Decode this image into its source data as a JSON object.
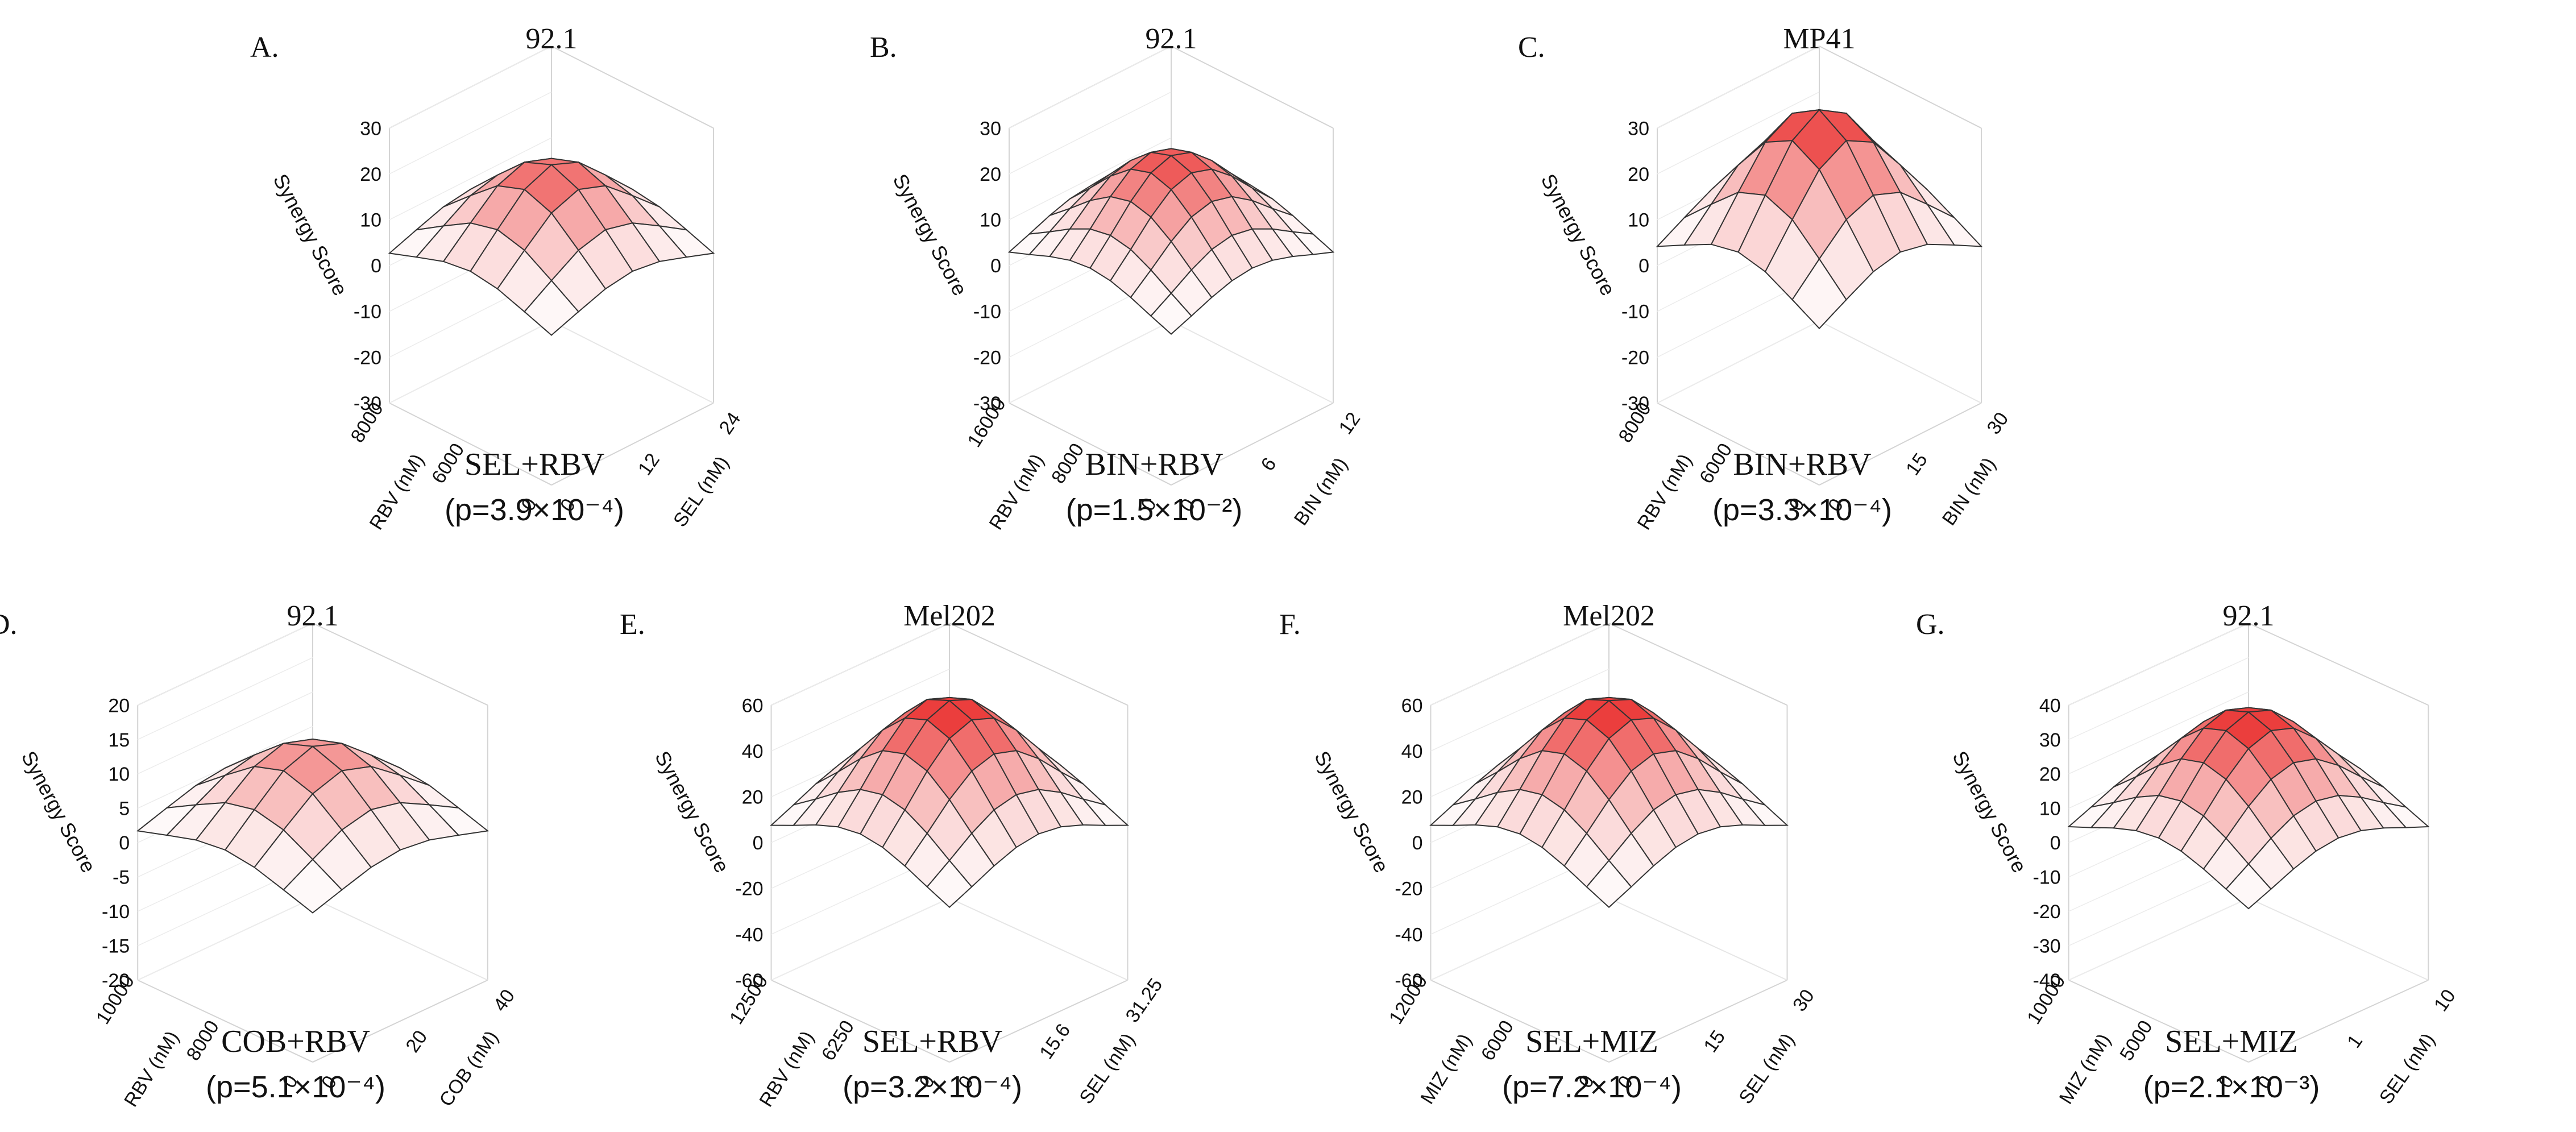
{
  "figure": {
    "background": "#ffffff",
    "surface_peak_color": "#e8201f",
    "surface_base_color": "#ffffff"
  },
  "chart_data": [
    {
      "type": "surface",
      "panel_label": "A.",
      "title": "92.1",
      "combination": "SEL+RBV",
      "p_text": "(p=3.9×10⁻⁴)",
      "zlabel": "Synergy Score",
      "zticks": [
        "30",
        "20",
        "10",
        "0",
        "-10",
        "-20",
        "-30"
      ],
      "zlim": [
        -30,
        30
      ],
      "xlabel": "SEL (nM)",
      "xticks": [
        "0",
        "12",
        "24"
      ],
      "ylabel": "RBV (nM)",
      "yticks": [
        "0",
        "6000",
        "8000"
      ],
      "peak_synergy": 22,
      "grid_size": 7
    },
    {
      "type": "surface",
      "panel_label": "B.",
      "title": "92.1",
      "combination": "BIN+RBV",
      "p_text": "(p=1.5×10⁻²)",
      "zlabel": "Synergy Score",
      "zticks": [
        "30",
        "20",
        "10",
        "0",
        "-10",
        "-20",
        "-30"
      ],
      "zlim": [
        -30,
        30
      ],
      "xlabel": "BIN (nM)",
      "xticks": [
        "0",
        "6",
        "12"
      ],
      "ylabel": "RBV (nM)",
      "yticks": [
        "0",
        "8000",
        "16000"
      ],
      "peak_synergy": 24,
      "grid_size": 9
    },
    {
      "type": "surface",
      "panel_label": "C.",
      "title": "MP41",
      "combination": "BIN+RBV",
      "p_text": "(p=3.3×10⁻⁴)",
      "zlabel": "Synergy Score",
      "zticks": [
        "30",
        "20",
        "10",
        "0",
        "-10",
        "-20",
        "-30"
      ],
      "zlim": [
        -30,
        30
      ],
      "xlabel": "BIN (nM)",
      "xticks": [
        "0",
        "15",
        "30"
      ],
      "ylabel": "RBV (nM)",
      "yticks": [
        "0",
        "6000",
        "8000"
      ],
      "peak_synergy": 34,
      "grid_size": 7
    },
    {
      "type": "surface",
      "panel_label": "D.",
      "title": "92.1",
      "combination": "COB+RBV",
      "p_text": "(p=5.1×10⁻⁴)",
      "zlabel": "Synergy Score",
      "zticks": [
        "20",
        "15",
        "10",
        "5",
        "0",
        "-5",
        "-10",
        "-15",
        "-20"
      ],
      "zlim": [
        -20,
        20
      ],
      "xlabel": "COB (nM)",
      "xticks": [
        "0",
        "20",
        "40"
      ],
      "ylabel": "RBV (nM)",
      "yticks": [
        "0",
        "8000",
        "10000"
      ],
      "peak_synergy": 14,
      "grid_size": 7
    },
    {
      "type": "surface",
      "panel_label": "E.",
      "title": "Mel202",
      "combination": "SEL+RBV",
      "p_text": "(p=3.2×10⁻⁴)",
      "zlabel": "Synergy Score",
      "zticks": [
        "60",
        "40",
        "20",
        "0",
        "-20",
        "-40",
        "-60"
      ],
      "zlim": [
        -60,
        60
      ],
      "xlabel": "SEL (nM)",
      "xticks": [
        "0",
        "15.6",
        "31.25"
      ],
      "ylabel": "RBV (nM)",
      "yticks": [
        "0",
        "6250",
        "12500"
      ],
      "peak_synergy": 62,
      "grid_size": 9
    },
    {
      "type": "surface",
      "panel_label": "F.",
      "title": "Mel202",
      "combination": "SEL+MIZ",
      "p_text": "(p=7.2×10⁻⁴)",
      "zlabel": "Synergy Score",
      "zticks": [
        "60",
        "40",
        "20",
        "0",
        "-20",
        "-40",
        "-60"
      ],
      "zlim": [
        -60,
        60
      ],
      "xlabel": "SEL (nM)",
      "xticks": [
        "0",
        "15",
        "30"
      ],
      "ylabel": "MIZ (nM)",
      "yticks": [
        "0",
        "6000",
        "12000"
      ],
      "peak_synergy": 62,
      "grid_size": 9
    },
    {
      "type": "surface",
      "panel_label": "G.",
      "title": "92.1",
      "combination": "SEL+MIZ",
      "p_text": "(p=2.1×10⁻³)",
      "zlabel": "Synergy Score",
      "zticks": [
        "40",
        "30",
        "20",
        "10",
        "0",
        "-10",
        "-20",
        "-30",
        "-40"
      ],
      "zlim": [
        -40,
        40
      ],
      "xlabel": "SEL (nM)",
      "xticks": [
        "0",
        "1",
        "10"
      ],
      "ylabel": "MIZ (nM)",
      "yticks": [
        "0",
        "5000",
        "10000"
      ],
      "peak_synergy": 38,
      "grid_size": 9
    }
  ]
}
